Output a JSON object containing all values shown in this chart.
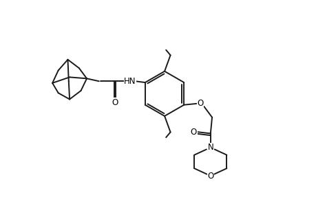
{
  "background": "#ffffff",
  "line_color": "#1a1a1a",
  "line_width": 1.4,
  "figsize": [
    4.6,
    3.0
  ],
  "dpi": 100,
  "xlim": [
    0,
    10
  ],
  "ylim": [
    0,
    6.5
  ]
}
